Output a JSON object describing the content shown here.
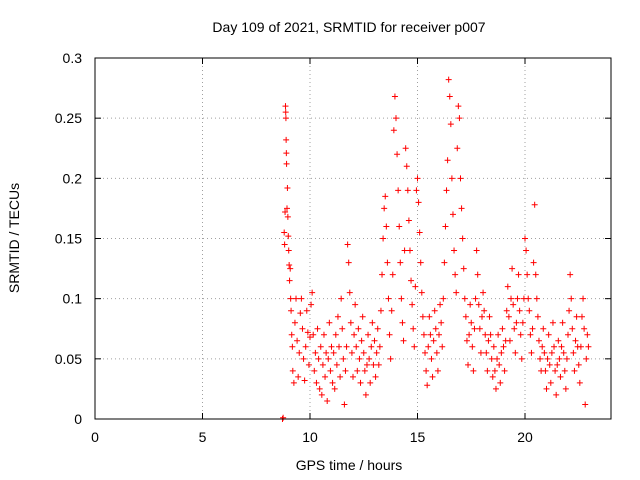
{
  "chart_data": {
    "type": "scatter",
    "title": "Day 109 of 2021, SRMTID for receiver p007",
    "xlabel": "GPS time / hours",
    "ylabel": "SRMTID / TECUs",
    "xlim": [
      0,
      24
    ],
    "ylim": [
      0,
      0.3
    ],
    "xticks": [
      0,
      5,
      10,
      15,
      20
    ],
    "xtick_labels": [
      "0",
      "5",
      "10",
      "15",
      "20"
    ],
    "yticks": [
      0,
      0.05,
      0.1,
      0.15,
      0.2,
      0.25,
      0.3
    ],
    "ytick_labels": [
      "0",
      "0.05",
      "0.1",
      "0.15",
      "0.2",
      "0.25",
      "0.3"
    ],
    "grid": true,
    "marker": "+",
    "color": "#ff0000",
    "series": [
      {
        "name": "SRMTID",
        "points": [
          [
            8.72,
            0.0
          ],
          [
            8.75,
            0.001
          ],
          [
            8.8,
            0.155
          ],
          [
            8.82,
            0.145
          ],
          [
            8.84,
            0.172
          ],
          [
            8.86,
            0.26
          ],
          [
            8.87,
            0.255
          ],
          [
            8.88,
            0.25
          ],
          [
            8.89,
            0.232
          ],
          [
            8.9,
            0.221
          ],
          [
            8.91,
            0.212
          ],
          [
            8.93,
            0.175
          ],
          [
            8.95,
            0.192
          ],
          [
            8.97,
            0.168
          ],
          [
            8.99,
            0.152
          ],
          [
            9.01,
            0.14
          ],
          [
            9.03,
            0.128
          ],
          [
            9.05,
            0.115
          ],
          [
            9.08,
            0.125
          ],
          [
            9.1,
            0.1
          ],
          [
            9.12,
            0.09
          ],
          [
            9.15,
            0.07
          ],
          [
            9.18,
            0.06
          ],
          [
            9.2,
            0.04
          ],
          [
            9.25,
            0.03
          ],
          [
            9.3,
            0.08
          ],
          [
            9.35,
            0.1
          ],
          [
            9.4,
            0.065
          ],
          [
            9.45,
            0.035
          ],
          [
            9.5,
            0.055
          ],
          [
            9.55,
            0.088
          ],
          [
            9.6,
            0.1
          ],
          [
            9.65,
            0.075
          ],
          [
            9.7,
            0.05
          ],
          [
            9.75,
            0.032
          ],
          [
            9.8,
            0.06
          ],
          [
            9.85,
            0.09
          ],
          [
            9.9,
            0.072
          ],
          [
            9.95,
            0.045
          ],
          [
            10.0,
            0.068
          ],
          [
            10.05,
            0.095
          ],
          [
            10.1,
            0.105
          ],
          [
            10.15,
            0.07
          ],
          [
            10.2,
            0.04
          ],
          [
            10.25,
            0.055
          ],
          [
            10.3,
            0.03
          ],
          [
            10.35,
            0.075
          ],
          [
            10.4,
            0.05
          ],
          [
            10.45,
            0.025
          ],
          [
            10.5,
            0.06
          ],
          [
            10.55,
            0.02
          ],
          [
            10.6,
            0.045
          ],
          [
            10.65,
            0.07
          ],
          [
            10.7,
            0.035
          ],
          [
            10.75,
            0.055
          ],
          [
            10.8,
            0.015
          ],
          [
            10.85,
            0.05
          ],
          [
            10.9,
            0.08
          ],
          [
            10.95,
            0.04
          ],
          [
            11.0,
            0.06
          ],
          [
            11.05,
            0.03
          ],
          [
            11.1,
            0.055
          ],
          [
            11.15,
            0.025
          ],
          [
            11.2,
            0.07
          ],
          [
            11.25,
            0.045
          ],
          [
            11.3,
            0.085
          ],
          [
            11.35,
            0.06
          ],
          [
            11.4,
            0.035
          ],
          [
            11.45,
            0.1
          ],
          [
            11.5,
            0.075
          ],
          [
            11.55,
            0.05
          ],
          [
            11.6,
            0.012
          ],
          [
            11.65,
            0.04
          ],
          [
            11.7,
            0.06
          ],
          [
            11.75,
            0.145
          ],
          [
            11.8,
            0.13
          ],
          [
            11.85,
            0.105
          ],
          [
            11.9,
            0.08
          ],
          [
            11.95,
            0.055
          ],
          [
            12.0,
            0.035
          ],
          [
            12.05,
            0.07
          ],
          [
            12.1,
            0.095
          ],
          [
            12.15,
            0.06
          ],
          [
            12.2,
            0.04
          ],
          [
            12.25,
            0.075
          ],
          [
            12.3,
            0.05
          ],
          [
            12.35,
            0.03
          ],
          [
            12.4,
            0.065
          ],
          [
            12.45,
            0.085
          ],
          [
            12.5,
            0.055
          ],
          [
            12.55,
            0.04
          ],
          [
            12.6,
            0.02
          ],
          [
            12.65,
            0.045
          ],
          [
            12.7,
            0.07
          ],
          [
            12.75,
            0.05
          ],
          [
            12.8,
            0.03
          ],
          [
            12.85,
            0.06
          ],
          [
            12.9,
            0.08
          ],
          [
            12.95,
            0.045
          ],
          [
            13.0,
            0.065
          ],
          [
            13.05,
            0.035
          ],
          [
            13.1,
            0.055
          ],
          [
            13.15,
            0.075
          ],
          [
            13.2,
            0.045
          ],
          [
            13.25,
            0.06
          ],
          [
            13.3,
            0.09
          ],
          [
            13.35,
            0.12
          ],
          [
            13.4,
            0.15
          ],
          [
            13.45,
            0.175
          ],
          [
            13.5,
            0.185
          ],
          [
            13.55,
            0.16
          ],
          [
            13.6,
            0.13
          ],
          [
            13.65,
            0.1
          ],
          [
            13.7,
            0.07
          ],
          [
            13.75,
            0.05
          ],
          [
            13.8,
            0.09
          ],
          [
            13.85,
            0.12
          ],
          [
            13.9,
            0.24
          ],
          [
            13.95,
            0.268
          ],
          [
            14.0,
            0.25
          ],
          [
            14.05,
            0.22
          ],
          [
            14.1,
            0.19
          ],
          [
            14.15,
            0.16
          ],
          [
            14.2,
            0.13
          ],
          [
            14.25,
            0.1
          ],
          [
            14.3,
            0.08
          ],
          [
            14.35,
            0.065
          ],
          [
            14.4,
            0.14
          ],
          [
            14.45,
            0.225
          ],
          [
            14.5,
            0.21
          ],
          [
            14.55,
            0.19
          ],
          [
            14.6,
            0.165
          ],
          [
            14.65,
            0.14
          ],
          [
            14.7,
            0.115
          ],
          [
            14.75,
            0.095
          ],
          [
            14.8,
            0.075
          ],
          [
            14.85,
            0.06
          ],
          [
            14.9,
            0.11
          ],
          [
            14.95,
            0.19
          ],
          [
            15.0,
            0.2
          ],
          [
            15.05,
            0.18
          ],
          [
            15.1,
            0.155
          ],
          [
            15.15,
            0.13
          ],
          [
            15.2,
            0.105
          ],
          [
            15.25,
            0.085
          ],
          [
            15.3,
            0.07
          ],
          [
            15.35,
            0.055
          ],
          [
            15.4,
            0.04
          ],
          [
            15.45,
            0.028
          ],
          [
            15.5,
            0.06
          ],
          [
            15.55,
            0.085
          ],
          [
            15.6,
            0.07
          ],
          [
            15.65,
            0.05
          ],
          [
            15.7,
            0.035
          ],
          [
            15.75,
            0.065
          ],
          [
            15.8,
            0.09
          ],
          [
            15.85,
            0.075
          ],
          [
            15.9,
            0.055
          ],
          [
            15.95,
            0.04
          ],
          [
            16.0,
            0.07
          ],
          [
            16.05,
            0.095
          ],
          [
            16.1,
            0.08
          ],
          [
            16.15,
            0.06
          ],
          [
            16.2,
            0.1
          ],
          [
            16.25,
            0.13
          ],
          [
            16.3,
            0.16
          ],
          [
            16.35,
            0.19
          ],
          [
            16.4,
            0.215
          ],
          [
            16.45,
            0.282
          ],
          [
            16.5,
            0.268
          ],
          [
            16.55,
            0.245
          ],
          [
            16.6,
            0.2
          ],
          [
            16.65,
            0.17
          ],
          [
            16.7,
            0.14
          ],
          [
            16.75,
            0.12
          ],
          [
            16.8,
            0.105
          ],
          [
            16.85,
            0.225
          ],
          [
            16.9,
            0.26
          ],
          [
            16.95,
            0.25
          ],
          [
            17.0,
            0.2
          ],
          [
            17.05,
            0.175
          ],
          [
            17.1,
            0.15
          ],
          [
            17.15,
            0.125
          ],
          [
            17.2,
            0.1
          ],
          [
            17.25,
            0.085
          ],
          [
            17.3,
            0.065
          ],
          [
            17.35,
            0.045
          ],
          [
            17.4,
            0.07
          ],
          [
            17.45,
            0.095
          ],
          [
            17.5,
            0.08
          ],
          [
            17.55,
            0.06
          ],
          [
            17.6,
            0.04
          ],
          [
            17.65,
            0.075
          ],
          [
            17.7,
            0.1
          ],
          [
            17.75,
            0.14
          ],
          [
            17.8,
            0.12
          ],
          [
            17.85,
            0.095
          ],
          [
            17.9,
            0.075
          ],
          [
            17.95,
            0.055
          ],
          [
            18.0,
            0.085
          ],
          [
            18.05,
            0.105
          ],
          [
            18.1,
            0.09
          ],
          [
            18.15,
            0.07
          ],
          [
            18.2,
            0.055
          ],
          [
            18.25,
            0.04
          ],
          [
            18.3,
            0.065
          ],
          [
            18.35,
            0.085
          ],
          [
            18.4,
            0.07
          ],
          [
            18.45,
            0.05
          ],
          [
            18.5,
            0.035
          ],
          [
            18.55,
            0.06
          ],
          [
            18.6,
            0.04
          ],
          [
            18.65,
            0.025
          ],
          [
            18.7,
            0.05
          ],
          [
            18.75,
            0.07
          ],
          [
            18.8,
            0.045
          ],
          [
            18.85,
            0.03
          ],
          [
            18.9,
            0.055
          ],
          [
            18.95,
            0.075
          ],
          [
            19.0,
            0.06
          ],
          [
            19.05,
            0.04
          ],
          [
            19.1,
            0.065
          ],
          [
            19.15,
            0.09
          ],
          [
            19.2,
            0.11
          ],
          [
            19.25,
            0.085
          ],
          [
            19.3,
            0.065
          ],
          [
            19.35,
            0.1
          ],
          [
            19.4,
            0.125
          ],
          [
            19.45,
            0.095
          ],
          [
            19.5,
            0.075
          ],
          [
            19.55,
            0.055
          ],
          [
            19.6,
            0.08
          ],
          [
            19.65,
            0.1
          ],
          [
            19.7,
            0.12
          ],
          [
            19.75,
            0.09
          ],
          [
            19.8,
            0.07
          ],
          [
            19.85,
            0.05
          ],
          [
            19.9,
            0.08
          ],
          [
            19.95,
            0.1
          ],
          [
            20.0,
            0.15
          ],
          [
            20.05,
            0.14
          ],
          [
            20.1,
            0.12
          ],
          [
            20.15,
            0.1
          ],
          [
            20.2,
            0.09
          ],
          [
            20.25,
            0.07
          ],
          [
            20.3,
            0.055
          ],
          [
            20.35,
            0.075
          ],
          [
            20.4,
            0.13
          ],
          [
            20.45,
            0.178
          ],
          [
            20.5,
            0.12
          ],
          [
            20.55,
            0.1
          ],
          [
            20.6,
            0.085
          ],
          [
            20.65,
            0.065
          ],
          [
            20.7,
            0.05
          ],
          [
            20.75,
            0.04
          ],
          [
            20.8,
            0.06
          ],
          [
            20.85,
            0.075
          ],
          [
            20.9,
            0.055
          ],
          [
            20.95,
            0.04
          ],
          [
            21.0,
            0.025
          ],
          [
            21.05,
            0.05
          ],
          [
            21.1,
            0.07
          ],
          [
            21.15,
            0.045
          ],
          [
            21.2,
            0.03
          ],
          [
            21.25,
            0.055
          ],
          [
            21.3,
            0.08
          ],
          [
            21.35,
            0.06
          ],
          [
            21.4,
            0.04
          ],
          [
            21.45,
            0.02
          ],
          [
            21.5,
            0.045
          ],
          [
            21.55,
            0.065
          ],
          [
            21.6,
            0.05
          ],
          [
            21.65,
            0.035
          ],
          [
            21.7,
            0.06
          ],
          [
            21.75,
            0.08
          ],
          [
            21.8,
            0.055
          ],
          [
            21.85,
            0.04
          ],
          [
            21.9,
            0.025
          ],
          [
            21.95,
            0.05
          ],
          [
            22.0,
            0.07
          ],
          [
            22.05,
            0.09
          ],
          [
            22.1,
            0.12
          ],
          [
            22.15,
            0.1
          ],
          [
            22.2,
            0.075
          ],
          [
            22.25,
            0.055
          ],
          [
            22.3,
            0.04
          ],
          [
            22.35,
            0.065
          ],
          [
            22.4,
            0.085
          ],
          [
            22.45,
            0.06
          ],
          [
            22.5,
            0.045
          ],
          [
            22.55,
            0.03
          ],
          [
            22.6,
            0.06
          ],
          [
            22.65,
            0.085
          ],
          [
            22.7,
            0.1
          ],
          [
            22.75,
            0.075
          ],
          [
            22.8,
            0.012
          ],
          [
            22.85,
            0.05
          ],
          [
            22.9,
            0.07
          ],
          [
            22.95,
            0.06
          ]
        ]
      }
    ]
  }
}
